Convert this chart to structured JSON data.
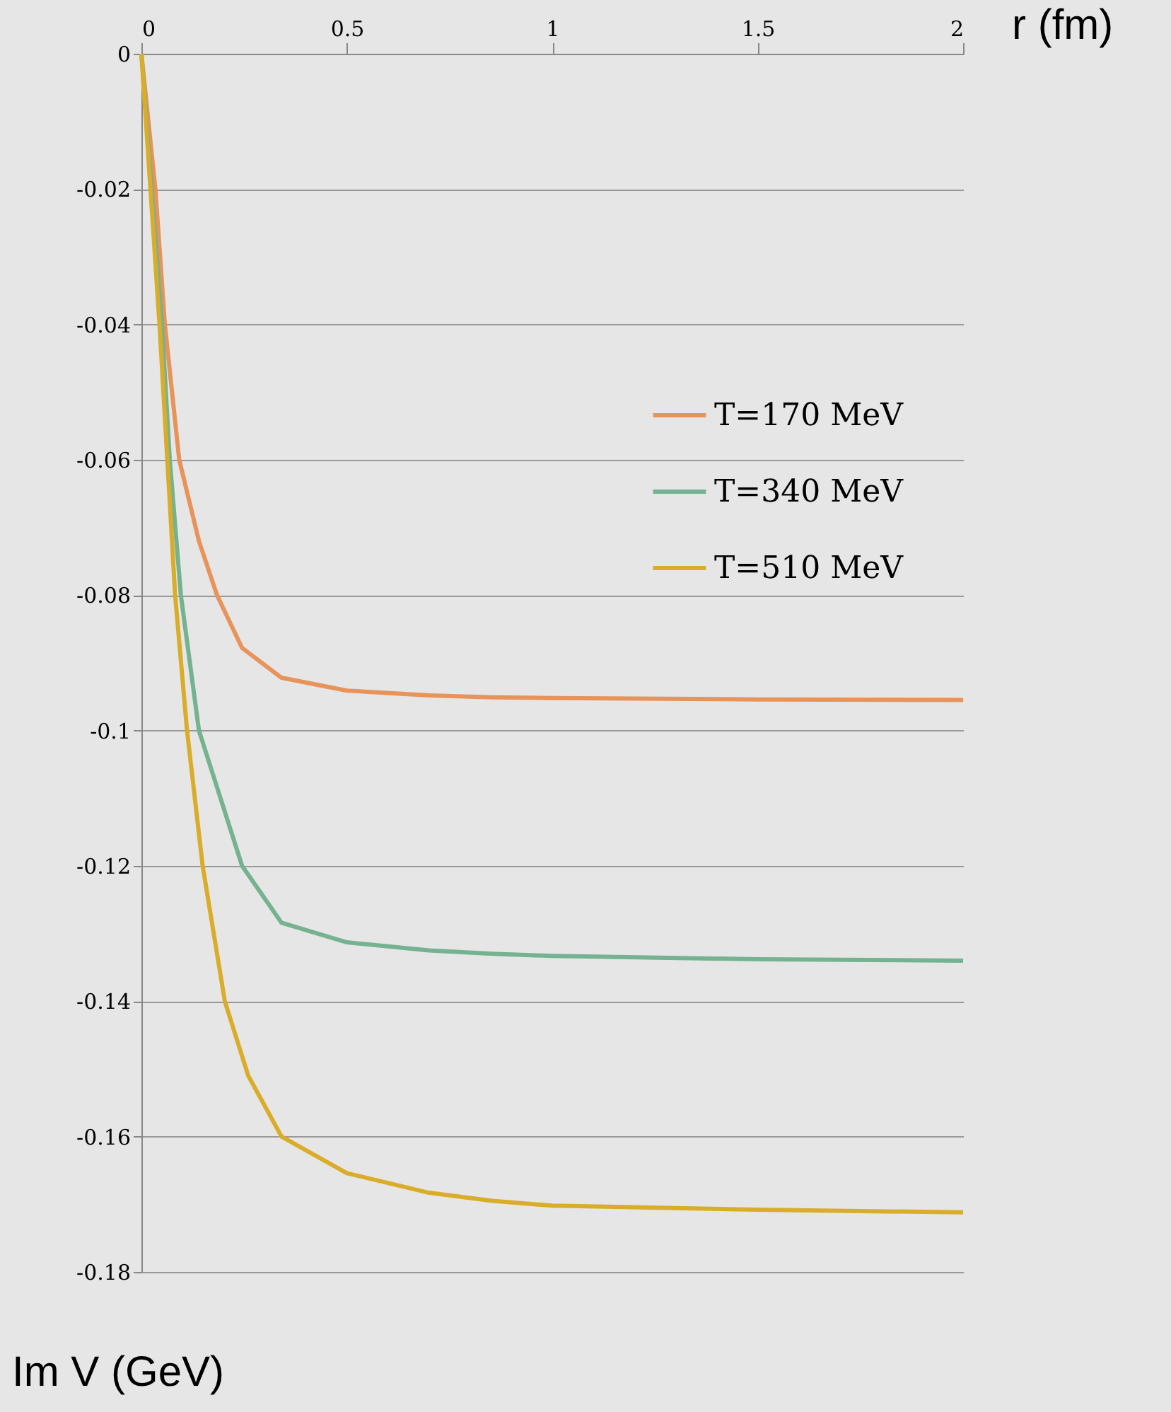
{
  "chart_data": {
    "type": "line",
    "xlabel": "r (fm)",
    "ylabel": "Im V (GeV)",
    "xlim": [
      0,
      2
    ],
    "xticks": [
      0,
      0.5,
      1,
      1.5,
      2
    ],
    "ylim": [
      -0.18,
      0
    ],
    "yticks": [
      0,
      -0.02,
      -0.04,
      -0.06,
      -0.08,
      -0.1,
      -0.12,
      -0.14,
      -0.16,
      -0.18
    ],
    "grid": "y",
    "legend": "right",
    "marker": "none",
    "line_style": "solid",
    "series": [
      {
        "name": "T=170 MeV",
        "color": "#e8935a",
        "x": [
          0,
          0.034,
          0.057,
          0.092,
          0.14,
          0.184,
          0.245,
          0.341,
          0.5,
          0.7,
          0.854,
          1,
          1.5,
          2
        ],
        "values": [
          0,
          -0.02,
          -0.04,
          -0.06,
          -0.072,
          -0.08,
          -0.0878,
          -0.0922,
          -0.0941,
          -0.0948,
          -0.0951,
          -0.0952,
          -0.0954,
          -0.0955
        ]
      },
      {
        "name": "T=340 MeV",
        "color": "#74b290",
        "x": [
          0,
          0.05,
          0.069,
          0.096,
          0.14,
          0.245,
          0.341,
          0.5,
          0.7,
          0.854,
          1,
          1.5,
          2
        ],
        "values": [
          0,
          -0.04,
          -0.06,
          -0.08,
          -0.1,
          -0.12,
          -0.1284,
          -0.1313,
          -0.1325,
          -0.133,
          -0.1333,
          -0.1338,
          -0.134
        ]
      },
      {
        "name": "T=510 MeV",
        "color": "#d9ad2a",
        "x": [
          0,
          0.044,
          0.082,
          0.111,
          0.149,
          0.203,
          0.26,
          0.341,
          0.5,
          0.7,
          0.854,
          1,
          1.5,
          2
        ],
        "values": [
          0,
          -0.04,
          -0.08,
          -0.1,
          -0.12,
          -0.14,
          -0.151,
          -0.16,
          -0.1654,
          -0.1683,
          -0.1695,
          -0.1702,
          -0.1708,
          -0.1712
        ]
      }
    ]
  }
}
